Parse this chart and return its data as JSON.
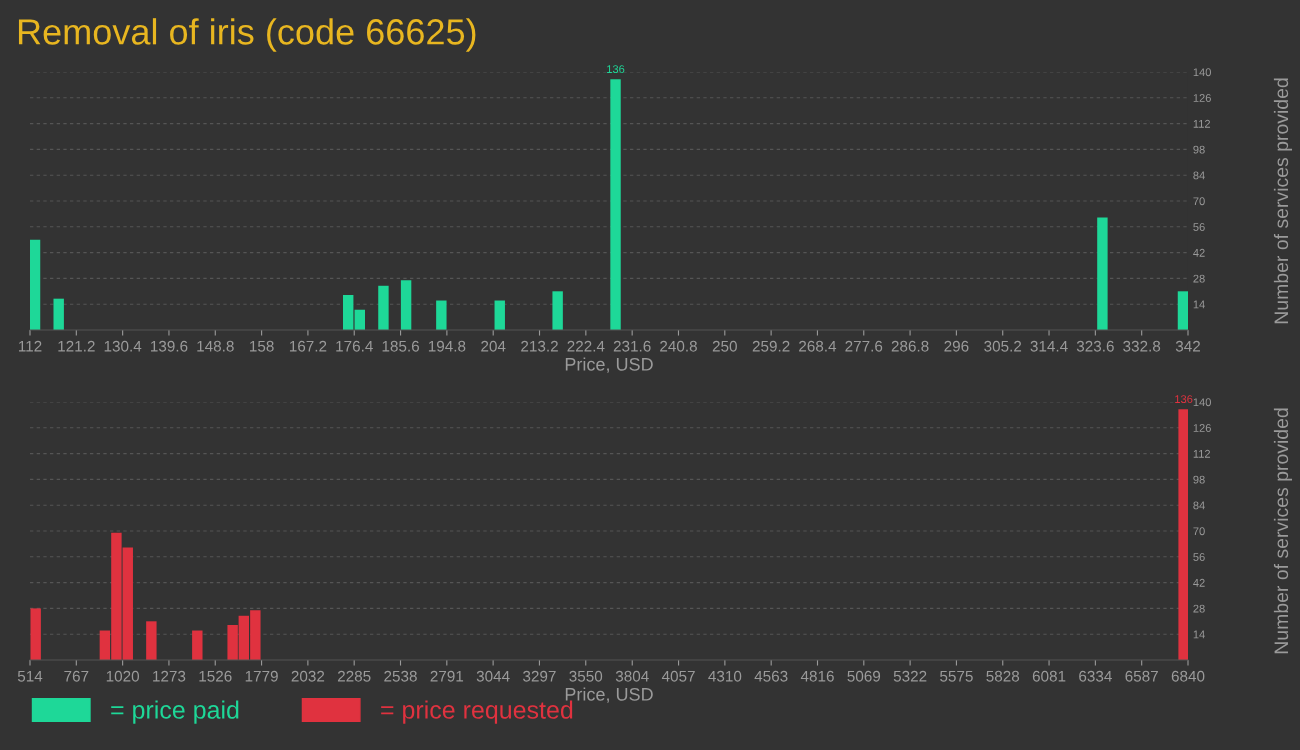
{
  "chart_data": [
    {
      "type": "bar",
      "title": "Removal of iris (code 66625)",
      "xlabel": "Price, USD",
      "ylabel": "Number of services provided",
      "x": [
        113,
        117.7,
        175.2,
        177.5,
        182.2,
        186.7,
        193.7,
        205.3,
        216.8,
        228.3,
        325.0,
        341.0
      ],
      "series": [
        {
          "name": "= price paid",
          "color": "#1ed898",
          "values": [
            49,
            17,
            19,
            11,
            24,
            27,
            16,
            16,
            21,
            136,
            61,
            21
          ],
          "value_labels": [
            null,
            null,
            null,
            null,
            null,
            null,
            null,
            null,
            null,
            "136",
            null,
            null
          ]
        }
      ],
      "xlim": [
        112,
        342
      ],
      "xticks": [
        112,
        121.2,
        130.4,
        139.6,
        148.8,
        158,
        167.2,
        176.4,
        185.6,
        194.8,
        204,
        213.2,
        222.4,
        231.6,
        240.8,
        250,
        259.2,
        268.4,
        277.6,
        286.8,
        296,
        305.2,
        314.4,
        323.6,
        332.8,
        342
      ],
      "ylim": [
        0,
        140
      ],
      "yticks": [
        14,
        28,
        42,
        56,
        70,
        84,
        98,
        112,
        126,
        140
      ],
      "grid": "y",
      "legend": "bottom left"
    },
    {
      "type": "bar",
      "xlabel": "Price, USD",
      "ylabel": "Number of services provided",
      "x": [
        545,
        923,
        986,
        1048,
        1177,
        1428,
        1621,
        1682,
        1745,
        6816
      ],
      "series": [
        {
          "name": "= price requested",
          "color": "#e0323f",
          "values": [
            28,
            16,
            69,
            61,
            21,
            16,
            19,
            24,
            27,
            136
          ],
          "value_labels": [
            null,
            null,
            null,
            null,
            null,
            null,
            null,
            null,
            null,
            "136"
          ]
        }
      ],
      "xlim": [
        514,
        6840
      ],
      "xticks": [
        514,
        767,
        1020,
        1273,
        1526,
        1779,
        2032,
        2285,
        2538,
        2791,
        3044,
        3297,
        3550,
        3804,
        4057,
        4310,
        4563,
        4816,
        5069,
        5322,
        5575,
        5828,
        6081,
        6334,
        6587,
        6840
      ],
      "ylim": [
        0,
        140
      ],
      "yticks": [
        14,
        28,
        42,
        56,
        70,
        84,
        98,
        112,
        126,
        140
      ],
      "grid": "y",
      "legend": "bottom left"
    }
  ]
}
